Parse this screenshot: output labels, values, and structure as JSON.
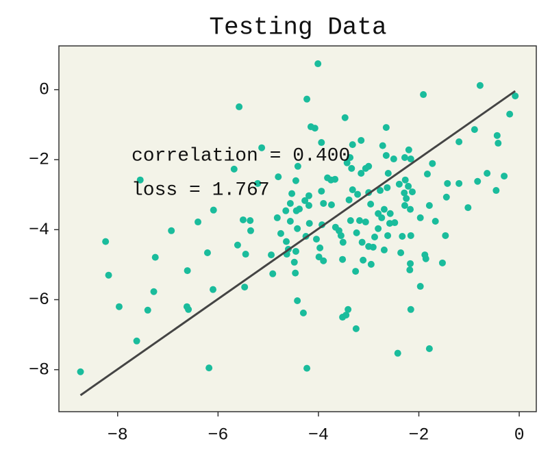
{
  "chart_data": {
    "type": "scatter",
    "title": "Testing Data",
    "x": [
      -8.74,
      -8.24,
      -8.18,
      -7.97,
      -7.62,
      -7.55,
      -7.4,
      -7.28,
      -7.25,
      -6.93,
      -6.61,
      -6.62,
      -6.59,
      -6.4,
      -6.21,
      -6.18,
      -6.1,
      -6.09,
      -5.68,
      -5.58,
      -5.5,
      -5.61,
      -5.47,
      -5.45,
      -5.36,
      -5.35,
      -5.13,
      -5.21,
      -4.94,
      -4.91,
      -4.82,
      -4.8,
      -4.75,
      -4.65,
      -4.64,
      -4.63,
      -4.6,
      -4.56,
      -4.56,
      -4.53,
      -4.48,
      -4.45,
      -4.46,
      -4.45,
      -4.41,
      -4.42,
      -4.44,
      -4.42,
      -4.38,
      -4.3,
      -4.27,
      -4.25,
      -4.23,
      -4.23,
      -4.19,
      -4.19,
      -4.18,
      -4.15,
      -4.07,
      -4.01,
      -4.04,
      -3.99,
      -3.97,
      -3.94,
      -3.94,
      -3.93,
      -3.9,
      -3.9,
      -3.82,
      -3.75,
      -3.74,
      -3.67,
      -3.66,
      -3.59,
      -3.55,
      -3.52,
      -3.52,
      -3.51,
      -3.47,
      -3.45,
      -3.41,
      -3.43,
      -3.37,
      -3.39,
      -3.36,
      -3.34,
      -3.32,
      -3.32,
      -3.26,
      -3.25,
      -3.24,
      -3.22,
      -3.18,
      -3.15,
      -3.15,
      -3.13,
      -3.11,
      -3.06,
      -3.06,
      -3.0,
      -3.0,
      -3.0,
      -2.96,
      -2.95,
      -2.91,
      -2.88,
      -2.81,
      -2.81,
      -2.77,
      -2.74,
      -2.72,
      -2.69,
      -2.69,
      -2.65,
      -2.65,
      -2.63,
      -2.62,
      -2.61,
      -2.58,
      -2.57,
      -2.5,
      -2.48,
      -2.42,
      -2.39,
      -2.36,
      -2.33,
      -2.29,
      -2.28,
      -2.28,
      -2.27,
      -2.25,
      -2.21,
      -2.2,
      -2.18,
      -2.17,
      -2.17,
      -2.16,
      -2.16,
      -2.16,
      -2.13,
      -1.97,
      -1.97,
      -1.91,
      -1.88,
      -1.86,
      -1.83,
      -1.79,
      -1.79,
      -1.73,
      -1.67,
      -1.53,
      -1.47,
      -1.45,
      -1.43,
      -1.2,
      -1.2,
      -1.02,
      -0.89,
      -0.83,
      -0.78,
      -0.64,
      -0.46,
      -0.44,
      -0.42,
      -0.3,
      -0.19,
      -0.08
    ],
    "values": [
      -8.06,
      -4.34,
      -5.3,
      -6.2,
      -7.18,
      -2.58,
      -6.3,
      -5.77,
      -4.79,
      -4.03,
      -5.17,
      -6.2,
      -6.28,
      -3.78,
      -4.66,
      -7.95,
      -5.71,
      -3.44,
      -2.27,
      -0.49,
      -3.72,
      -4.44,
      -5.64,
      -4.7,
      -3.74,
      -4.03,
      -1.66,
      -2.68,
      -4.72,
      -5.26,
      -3.66,
      -2.49,
      -4.11,
      -3.46,
      -4.34,
      -4.7,
      -4.56,
      -3.76,
      -3.25,
      -2.97,
      -4.93,
      -4.62,
      -5.24,
      -2.6,
      -2.19,
      -3.97,
      -3.46,
      -6.03,
      -3.41,
      -6.38,
      -3.17,
      -4.19,
      -7.96,
      -0.27,
      -3.31,
      -3.03,
      -3.82,
      -1.06,
      -1.1,
      0.74,
      -4.27,
      -4.78,
      -4.52,
      -2.9,
      -1.51,
      -3.86,
      -4.89,
      -3.25,
      -2.52,
      -2.58,
      -3.29,
      -2.56,
      -3.93,
      -4.03,
      -4.17,
      -4.85,
      -6.5,
      -4.36,
      -0.8,
      -6.44,
      -6.28,
      -2.09,
      -1.94,
      -3.15,
      -3.74,
      -2.25,
      -1.57,
      -2.86,
      -5.19,
      -6.83,
      -4.09,
      -2.99,
      -3.74,
      -1.45,
      -2.39,
      -4.36,
      -4.87,
      -3.78,
      -2.25,
      -2.19,
      -2.94,
      -4.48,
      -3.27,
      -4.99,
      -4.5,
      -4.21,
      -3.97,
      -3.54,
      -2.88,
      -3.66,
      -1.6,
      -3.42,
      -4.58,
      -1.08,
      -1.88,
      -2.8,
      -4.17,
      -2.39,
      -3.82,
      -3.54,
      -1.98,
      -3.8,
      -7.53,
      -2.7,
      -4.66,
      -4.19,
      -2.95,
      -1.94,
      -3.31,
      -2.58,
      -3.11,
      -2.76,
      -1.72,
      -5.15,
      -3.42,
      -4.97,
      -4.17,
      -6.28,
      -1.98,
      -2.92,
      -3.66,
      -5.62,
      -0.14,
      -4.72,
      -4.83,
      -2.41,
      -3.31,
      -7.4,
      -2.11,
      -3.76,
      -4.95,
      -4.17,
      -3.07,
      -2.68,
      -1.49,
      -2.68,
      -3.37,
      -1.14,
      -2.62,
      0.12,
      -2.39,
      -2.88,
      -1.31,
      -1.53,
      -2.47,
      -0.7,
      -0.18
    ],
    "color": "#1abc9c",
    "fit_line": {
      "x": [
        -8.74,
        -0.08
      ],
      "values": [
        -8.73,
        -0.04
      ],
      "color": "#444444"
    },
    "annotations": [
      "correlation = 0.400",
      "loss = 1.767"
    ],
    "xlim": [
      -9.17,
      0.34
    ],
    "ylim": [
      -9.2,
      1.25
    ],
    "xticks": [
      {
        "value": -8,
        "label": "−8"
      },
      {
        "value": -6,
        "label": "−6"
      },
      {
        "value": -4,
        "label": "−4"
      },
      {
        "value": -2,
        "label": "−2"
      },
      0
    ],
    "yticks": [
      0,
      {
        "value": -2,
        "label": "−2"
      },
      {
        "value": -4,
        "label": "−4"
      },
      {
        "value": -6,
        "label": "−6"
      },
      {
        "value": -8,
        "label": "−8"
      }
    ],
    "background": "#f3f3e8"
  }
}
